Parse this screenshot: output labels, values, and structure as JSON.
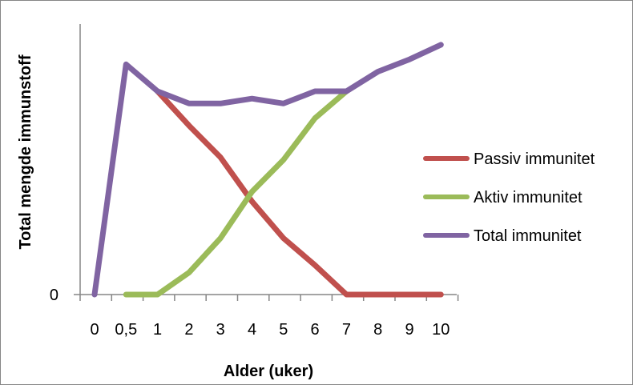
{
  "chart_data": {
    "type": "line",
    "title": "",
    "xlabel": "Alder (uker)",
    "ylabel": "Total mengde immunstoff",
    "categories": [
      "0",
      "0,5",
      "1",
      "2",
      "3",
      "4",
      "5",
      "6",
      "7",
      "8",
      "9",
      "10"
    ],
    "y_tick_labels": [
      "0"
    ],
    "ylim": [
      0,
      100
    ],
    "grid": false,
    "legend_position": "right",
    "series": [
      {
        "name": "Passiv immunitet",
        "color": "#c0504d",
        "values": [
          null,
          null,
          83,
          69,
          56,
          38,
          23,
          12,
          0,
          0,
          0,
          0
        ]
      },
      {
        "name": "Aktiv immunitet",
        "color": "#9bbb59",
        "values": [
          null,
          0,
          0,
          9,
          23,
          42,
          55,
          72,
          83,
          null,
          null,
          null
        ]
      },
      {
        "name": "Total immunitet",
        "color": "#8064a2",
        "values": [
          0,
          94,
          83,
          78,
          78,
          80,
          78,
          83,
          83,
          91,
          96,
          102
        ]
      }
    ]
  }
}
